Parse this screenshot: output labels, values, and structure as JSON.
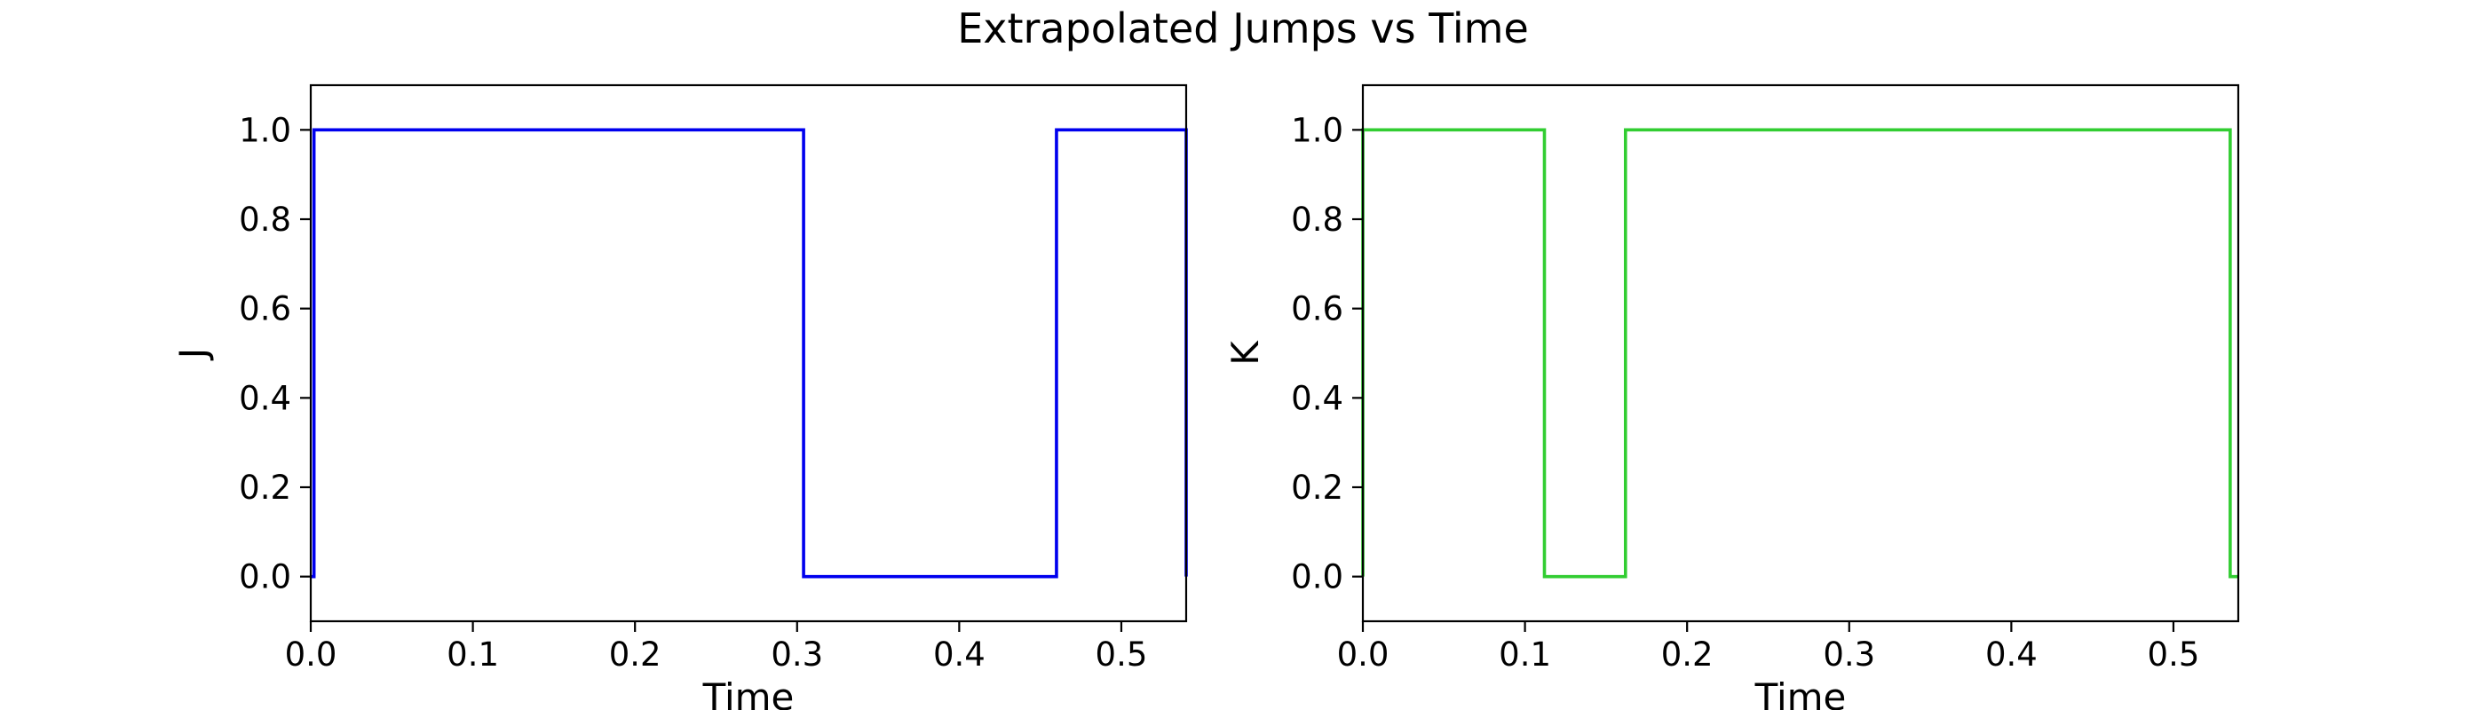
{
  "figure": {
    "title": "Extrapolated Jumps vs Time"
  },
  "chart_data": [
    {
      "type": "line",
      "style": "step",
      "xlabel": "Time",
      "ylabel": "J",
      "xlim": [
        0.0,
        0.54
      ],
      "ylim": [
        -0.1,
        1.1
      ],
      "xticks": [
        "0.0",
        "0.1",
        "0.2",
        "0.3",
        "0.4",
        "0.5"
      ],
      "xtick_values": [
        0.0,
        0.1,
        0.2,
        0.3,
        0.4,
        0.5
      ],
      "yticks": [
        "0.0",
        "0.2",
        "0.4",
        "0.6",
        "0.8",
        "1.0"
      ],
      "ytick_values": [
        0.0,
        0.2,
        0.4,
        0.6,
        0.8,
        1.0
      ],
      "grid": false,
      "color": "#0000ee",
      "x": [
        0.0,
        0.002,
        0.002,
        0.304,
        0.304,
        0.46,
        0.46,
        0.54,
        0.54
      ],
      "y": [
        0,
        0,
        1,
        1,
        0,
        0,
        1,
        1,
        0
      ]
    },
    {
      "type": "line",
      "style": "step",
      "xlabel": "Time",
      "ylabel": "K",
      "xlim": [
        0.0,
        0.54
      ],
      "ylim": [
        -0.1,
        1.1
      ],
      "xticks": [
        "0.0",
        "0.1",
        "0.2",
        "0.3",
        "0.4",
        "0.5"
      ],
      "xtick_values": [
        0.0,
        0.1,
        0.2,
        0.3,
        0.4,
        0.5
      ],
      "yticks": [
        "0.0",
        "0.2",
        "0.4",
        "0.6",
        "0.8",
        "1.0"
      ],
      "ytick_values": [
        0.0,
        0.2,
        0.4,
        0.6,
        0.8,
        1.0
      ],
      "grid": false,
      "color": "#32cd32",
      "x": [
        0.0,
        0.0,
        0.112,
        0.112,
        0.162,
        0.162,
        0.535,
        0.535,
        0.54
      ],
      "y": [
        0,
        1,
        1,
        0,
        0,
        1,
        1,
        0,
        0
      ]
    }
  ]
}
